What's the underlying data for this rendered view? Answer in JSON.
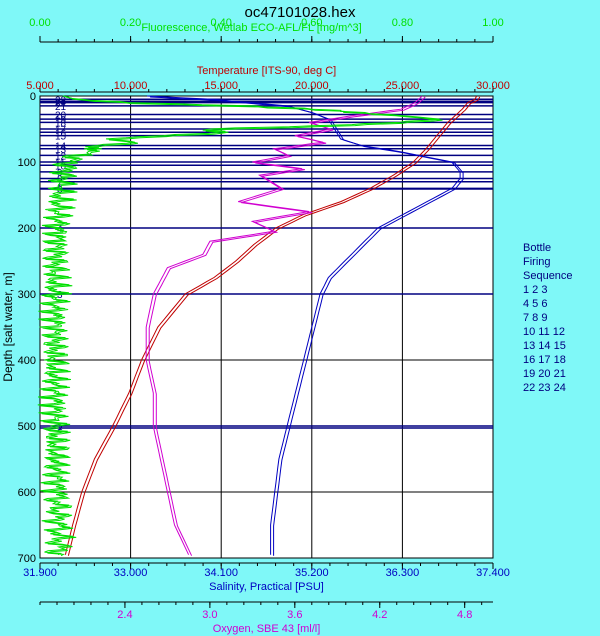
{
  "title": "oc47101028.hex",
  "colors": {
    "background": "#7ff8f8",
    "plot_bg": "#ffffff",
    "fluorescence": "#00e000",
    "temperature": "#c00000",
    "salinity": "#0000c0",
    "oxygen": "#d000d0",
    "bottle": "#000080"
  },
  "legend": {
    "title_lines": [
      "Bottle",
      "Firing",
      "Sequence"
    ],
    "rows": [
      "1 2 3",
      "4 5 6",
      "7 8 9",
      "10 11 12",
      "13 14 15",
      "16 17 18",
      "19 20 21",
      "22 23 24"
    ]
  },
  "chart_data": {
    "type": "line",
    "title": "oc47101028.hex",
    "ylabel": "Depth [salt water, m]",
    "ylim": [
      0,
      700
    ],
    "y_ticks": [
      0,
      100,
      200,
      300,
      400,
      500,
      600,
      700
    ],
    "grid": true,
    "legend_position": "right",
    "axes": {
      "fluorescence": {
        "label": "Fluorescence, Wetlab ECO-AFL/FL [mg/m^3]",
        "range": [
          0,
          1
        ],
        "ticks": [
          "0.00",
          "0.20",
          "0.40",
          "0.60",
          "0.80",
          "1.00"
        ],
        "position": "top-outer"
      },
      "temperature": {
        "label": "Temperature [ITS-90, deg C]",
        "range": [
          5,
          30
        ],
        "ticks": [
          "5.000",
          "10.000",
          "15.000",
          "20.000",
          "25.000",
          "30.000"
        ],
        "position": "top-inner"
      },
      "salinity": {
        "label": "Salinity, Practical [PSU]",
        "range": [
          31.9,
          37.4
        ],
        "ticks": [
          "31.900",
          "33.000",
          "34.100",
          "35.200",
          "36.300",
          "37.400"
        ],
        "position": "bottom-inner"
      },
      "oxygen": {
        "label": "Oxygen, SBE 43 [ml/l]",
        "range": [
          1.8,
          5.0
        ],
        "ticks": [
          "2.4",
          "3.0",
          "3.6",
          "4.2",
          "4.8"
        ],
        "position": "bottom-outer"
      }
    },
    "series": [
      {
        "name": "Temperature",
        "axis": "temperature",
        "depth": [
          0,
          5,
          10,
          20,
          30,
          40,
          60,
          80,
          100,
          120,
          140,
          160,
          180,
          200,
          225,
          250,
          275,
          300,
          350,
          400,
          450,
          500,
          550,
          600,
          650,
          695
        ],
        "values": [
          29.1,
          29.0,
          28.6,
          28.3,
          27.9,
          27.5,
          26.9,
          26.3,
          25.6,
          24.5,
          23.2,
          21.6,
          19.5,
          18.0,
          16.8,
          15.8,
          14.6,
          13.0,
          11.5,
          10.6,
          9.9,
          9.0,
          8.0,
          7.3,
          6.8,
          6.4
        ]
      },
      {
        "name": "Salinity",
        "axis": "salinity",
        "depth": [
          0,
          5,
          15,
          25,
          35,
          45,
          55,
          65,
          75,
          85,
          100,
          115,
          125,
          140,
          160,
          180,
          200,
          225,
          250,
          275,
          300,
          350,
          400,
          450,
          500,
          550,
          600,
          650,
          695
        ],
        "values": [
          33.2,
          34.0,
          34.9,
          35.2,
          35.4,
          35.45,
          35.5,
          35.55,
          35.8,
          36.3,
          36.9,
          37.0,
          37.0,
          36.9,
          36.6,
          36.3,
          36.0,
          35.8,
          35.6,
          35.4,
          35.3,
          35.2,
          35.1,
          35.0,
          34.9,
          34.8,
          34.75,
          34.7,
          34.7
        ]
      },
      {
        "name": "Oxygen",
        "axis": "oxygen",
        "depth": [
          0,
          10,
          20,
          30,
          40,
          50,
          60,
          70,
          80,
          90,
          100,
          110,
          120,
          140,
          160,
          175,
          190,
          205,
          220,
          240,
          260,
          280,
          300,
          350,
          400,
          450,
          500,
          550,
          600,
          650,
          695
        ],
        "values": [
          4.5,
          4.45,
          4.35,
          4.0,
          3.7,
          3.85,
          3.6,
          3.8,
          3.45,
          3.55,
          3.3,
          3.65,
          3.35,
          3.5,
          3.2,
          3.7,
          3.3,
          3.45,
          3.0,
          2.95,
          2.7,
          2.65,
          2.6,
          2.55,
          2.55,
          2.6,
          2.6,
          2.65,
          2.7,
          2.75,
          2.85
        ]
      },
      {
        "name": "Fluorescence",
        "axis": "fluorescence",
        "depth": [
          0,
          5,
          10,
          15,
          20,
          25,
          30,
          35,
          40,
          45,
          50,
          55,
          60,
          65,
          70,
          75,
          80,
          90,
          100,
          120,
          150,
          200,
          300,
          400,
          500,
          600,
          695
        ],
        "values": [
          0.05,
          0.1,
          0.22,
          0.45,
          0.6,
          0.7,
          0.82,
          0.9,
          0.78,
          0.6,
          0.35,
          0.42,
          0.28,
          0.15,
          0.2,
          0.1,
          0.12,
          0.08,
          0.06,
          0.05,
          0.04,
          0.035,
          0.03,
          0.03,
          0.03,
          0.035,
          0.04
        ]
      }
    ],
    "bottles": [
      {
        "label": "1",
        "depth": 500
      },
      {
        "label": "2",
        "depth": 503
      },
      {
        "label": "3",
        "depth": 300
      },
      {
        "label": "4",
        "depth": 200
      },
      {
        "label": "5",
        "depth": 140
      },
      {
        "label": "6",
        "depth": 141
      },
      {
        "label": "7",
        "depth": 130
      },
      {
        "label": "8",
        "depth": 125
      },
      {
        "label": "9",
        "depth": 115
      },
      {
        "label": "10",
        "depth": 105
      },
      {
        "label": "11",
        "depth": 100
      },
      {
        "label": "12",
        "depth": 90
      },
      {
        "label": "13",
        "depth": 80
      },
      {
        "label": "14",
        "depth": 75
      },
      {
        "label": "15",
        "depth": 60
      },
      {
        "label": "16",
        "depth": 55
      },
      {
        "label": "17",
        "depth": 50
      },
      {
        "label": "18",
        "depth": 40
      },
      {
        "label": "19",
        "depth": 35
      },
      {
        "label": "20",
        "depth": 28
      },
      {
        "label": "21",
        "depth": 15
      },
      {
        "label": "22",
        "depth": 10
      },
      {
        "label": "23",
        "depth": 5
      },
      {
        "label": "24",
        "depth": 8
      }
    ]
  }
}
